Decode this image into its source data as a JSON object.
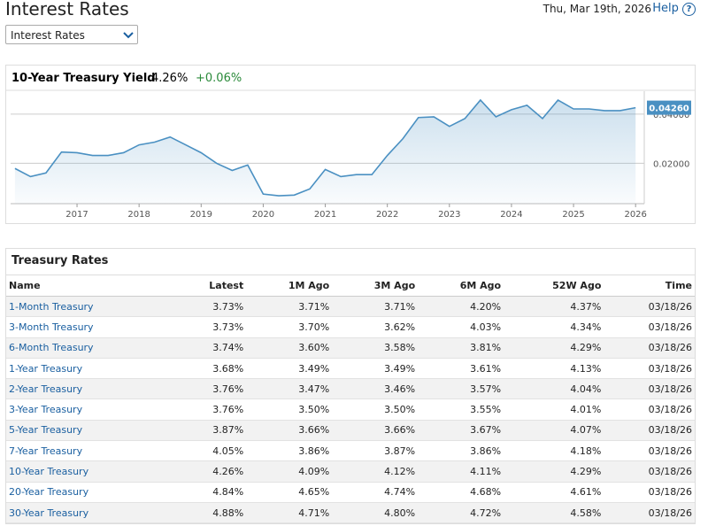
{
  "header": {
    "title": "Interest Rates",
    "date": "Thu, Mar 19th, 2026",
    "help": "Help",
    "dropdown": "Interest Rates"
  },
  "chart_data": {
    "type": "line",
    "title": "10-Year Treasury Yield",
    "latest": "4.26%",
    "change": "+0.06%",
    "x": [
      2016.0,
      2016.25,
      2016.5,
      2016.75,
      2017.0,
      2017.25,
      2017.5,
      2017.75,
      2018.0,
      2018.25,
      2018.5,
      2018.75,
      2019.0,
      2019.25,
      2019.5,
      2019.75,
      2020.0,
      2020.25,
      2020.5,
      2020.75,
      2021.0,
      2021.25,
      2021.5,
      2021.75,
      2022.0,
      2022.25,
      2022.5,
      2022.75,
      2023.0,
      2023.25,
      2023.5,
      2023.75,
      2024.0,
      2024.25,
      2024.5,
      2024.75,
      2025.0,
      2025.25,
      2025.5,
      2025.75,
      2026.0
    ],
    "values": [
      0.0179,
      0.0146,
      0.0161,
      0.0246,
      0.0243,
      0.0232,
      0.0232,
      0.0243,
      0.0275,
      0.0286,
      0.0307,
      0.0275,
      0.0243,
      0.02,
      0.0171,
      0.0193,
      0.0075,
      0.0068,
      0.0071,
      0.0096,
      0.0175,
      0.0146,
      0.0154,
      0.0154,
      0.0232,
      0.03,
      0.0386,
      0.0389,
      0.035,
      0.0382,
      0.0457,
      0.0389,
      0.0418,
      0.0436,
      0.0382,
      0.0457,
      0.0421,
      0.0421,
      0.0414,
      0.0414,
      0.0426
    ],
    "last_value_label": "0.04260",
    "color": "#4a90c2",
    "xlim": [
      2015.93,
      2026.14
    ],
    "xticks": [
      2017,
      2018,
      2019,
      2020,
      2021,
      2022,
      2023,
      2024,
      2025,
      2026
    ],
    "ylim": [
      0.0036,
      0.0493
    ],
    "yticks": [
      {
        "value": 0.02,
        "label": "0.02000"
      },
      {
        "value": 0.04,
        "label": "0.04000"
      }
    ],
    "grid": true
  },
  "table": {
    "title": "Treasury Rates",
    "columns": [
      "Name",
      "Latest",
      "1M Ago",
      "3M Ago",
      "6M Ago",
      "52W Ago",
      "Time"
    ],
    "rows": [
      [
        "1-Month Treasury",
        "3.73%",
        "3.71%",
        "3.71%",
        "4.20%",
        "4.37%",
        "03/18/26"
      ],
      [
        "3-Month Treasury",
        "3.73%",
        "3.70%",
        "3.62%",
        "4.03%",
        "4.34%",
        "03/18/26"
      ],
      [
        "6-Month Treasury",
        "3.74%",
        "3.60%",
        "3.58%",
        "3.81%",
        "4.29%",
        "03/18/26"
      ],
      [
        "1-Year Treasury",
        "3.68%",
        "3.49%",
        "3.49%",
        "3.61%",
        "4.13%",
        "03/18/26"
      ],
      [
        "2-Year Treasury",
        "3.76%",
        "3.47%",
        "3.46%",
        "3.57%",
        "4.04%",
        "03/18/26"
      ],
      [
        "3-Year Treasury",
        "3.76%",
        "3.50%",
        "3.50%",
        "3.55%",
        "4.01%",
        "03/18/26"
      ],
      [
        "5-Year Treasury",
        "3.87%",
        "3.66%",
        "3.66%",
        "3.67%",
        "4.07%",
        "03/18/26"
      ],
      [
        "7-Year Treasury",
        "4.05%",
        "3.86%",
        "3.87%",
        "3.86%",
        "4.18%",
        "03/18/26"
      ],
      [
        "10-Year Treasury",
        "4.26%",
        "4.09%",
        "4.12%",
        "4.11%",
        "4.29%",
        "03/18/26"
      ],
      [
        "20-Year Treasury",
        "4.84%",
        "4.65%",
        "4.74%",
        "4.68%",
        "4.61%",
        "03/18/26"
      ],
      [
        "30-Year Treasury",
        "4.88%",
        "4.71%",
        "4.80%",
        "4.72%",
        "4.58%",
        "03/18/26"
      ]
    ]
  }
}
